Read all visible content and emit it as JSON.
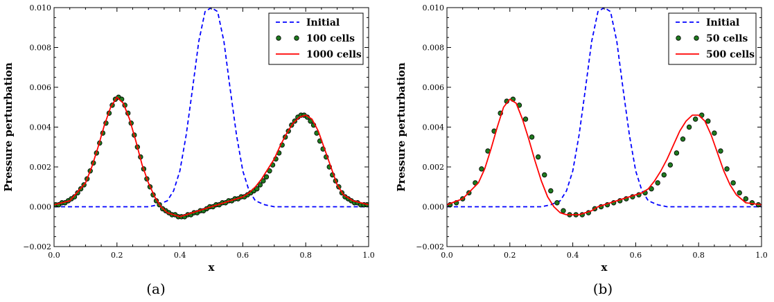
{
  "chart_data": [
    {
      "type": "line",
      "caption": "(a)",
      "xlabel": "x",
      "ylabel": "Pressure perturbation",
      "xlim": [
        0.0,
        1.0
      ],
      "ylim": [
        -0.002,
        0.01
      ],
      "xticks": [
        "0.0",
        "0.2",
        "0.4",
        "0.6",
        "0.8",
        "1.0"
      ],
      "yticks": [
        "−0.002",
        "0.000",
        "0.002",
        "0.004",
        "0.006",
        "0.008",
        "0.010"
      ],
      "legend_position": "top-right",
      "series": [
        {
          "name": "Initial",
          "style": "dashed",
          "color": "#0000ff",
          "x": [
            0.0,
            0.05,
            0.1,
            0.15,
            0.2,
            0.25,
            0.3,
            0.33,
            0.36,
            0.38,
            0.4,
            0.42,
            0.44,
            0.46,
            0.48,
            0.5,
            0.52,
            0.54,
            0.56,
            0.58,
            0.6,
            0.62,
            0.64,
            0.67,
            0.7,
            0.75,
            0.8,
            0.85,
            0.9,
            0.95,
            1.0
          ],
          "y": [
            0,
            0,
            0,
            0,
            0,
            0,
            0.0,
            0.0001,
            0.0003,
            0.0008,
            0.0018,
            0.0036,
            0.0059,
            0.0083,
            0.0098,
            0.01,
            0.0098,
            0.0083,
            0.0059,
            0.0036,
            0.0018,
            0.0008,
            0.0003,
            0.0001,
            0,
            0,
            0,
            0,
            0,
            0,
            0
          ]
        },
        {
          "name": "100 cells",
          "style": "markers",
          "color": "#1f7a1f",
          "edge": "#000000",
          "x": [
            0.005,
            0.015,
            0.025,
            0.035,
            0.045,
            0.055,
            0.065,
            0.075,
            0.085,
            0.095,
            0.105,
            0.115,
            0.125,
            0.135,
            0.145,
            0.155,
            0.165,
            0.175,
            0.185,
            0.195,
            0.205,
            0.215,
            0.225,
            0.235,
            0.245,
            0.255,
            0.265,
            0.275,
            0.285,
            0.295,
            0.305,
            0.315,
            0.325,
            0.335,
            0.345,
            0.355,
            0.365,
            0.375,
            0.385,
            0.395,
            0.405,
            0.415,
            0.425,
            0.435,
            0.445,
            0.455,
            0.465,
            0.475,
            0.485,
            0.495,
            0.505,
            0.515,
            0.525,
            0.535,
            0.545,
            0.555,
            0.565,
            0.575,
            0.585,
            0.595,
            0.605,
            0.615,
            0.625,
            0.635,
            0.645,
            0.655,
            0.665,
            0.675,
            0.685,
            0.695,
            0.705,
            0.715,
            0.725,
            0.735,
            0.745,
            0.755,
            0.765,
            0.775,
            0.785,
            0.795,
            0.805,
            0.815,
            0.825,
            0.835,
            0.845,
            0.855,
            0.865,
            0.875,
            0.885,
            0.895,
            0.905,
            0.915,
            0.925,
            0.935,
            0.945,
            0.955,
            0.965,
            0.975,
            0.985,
            0.995
          ],
          "y": [
            0.0001,
            0.0001,
            0.0002,
            0.0002,
            0.0003,
            0.0004,
            0.0005,
            0.0007,
            0.0009,
            0.0011,
            0.0014,
            0.0018,
            0.0022,
            0.0027,
            0.0032,
            0.0037,
            0.0042,
            0.0047,
            0.0051,
            0.0054,
            0.0055,
            0.0054,
            0.0051,
            0.0047,
            0.0042,
            0.0036,
            0.003,
            0.0025,
            0.0019,
            0.0014,
            0.001,
            0.0006,
            0.0003,
            0.0001,
            -0.0001,
            -0.0002,
            -0.0003,
            -0.0004,
            -0.0004,
            -0.0005,
            -0.0005,
            -0.0005,
            -0.0004,
            -0.0004,
            -0.0003,
            -0.0003,
            -0.0002,
            -0.0002,
            -0.0001,
            0.0,
            0.0,
            0.0001,
            0.0001,
            0.0002,
            0.0002,
            0.0003,
            0.0003,
            0.0004,
            0.0004,
            0.0005,
            0.0005,
            0.0006,
            0.0007,
            0.0008,
            0.0009,
            0.0011,
            0.0013,
            0.0015,
            0.0018,
            0.0021,
            0.0024,
            0.0027,
            0.0031,
            0.0035,
            0.0038,
            0.0041,
            0.0043,
            0.0045,
            0.0046,
            0.0046,
            0.0045,
            0.0043,
            0.0041,
            0.0037,
            0.0033,
            0.0029,
            0.0025,
            0.002,
            0.0016,
            0.0013,
            0.001,
            0.0007,
            0.0005,
            0.0004,
            0.0003,
            0.0002,
            0.0002,
            0.0001,
            0.0001,
            0.0001
          ]
        },
        {
          "name": "1000 cells",
          "style": "solid",
          "color": "#ff0000",
          "x": [
            0.0,
            0.05,
            0.1,
            0.12,
            0.14,
            0.16,
            0.18,
            0.2,
            0.22,
            0.24,
            0.26,
            0.28,
            0.3,
            0.32,
            0.34,
            0.36,
            0.38,
            0.4,
            0.42,
            0.44,
            0.46,
            0.48,
            0.5,
            0.52,
            0.54,
            0.56,
            0.58,
            0.6,
            0.62,
            0.64,
            0.66,
            0.68,
            0.7,
            0.72,
            0.74,
            0.76,
            0.78,
            0.8,
            0.82,
            0.84,
            0.86,
            0.88,
            0.9,
            0.92,
            0.95,
            1.0
          ],
          "y": [
            0.0001,
            0.0003,
            0.0012,
            0.002,
            0.003,
            0.0041,
            0.005,
            0.0055,
            0.0052,
            0.0044,
            0.0033,
            0.0021,
            0.0012,
            0.0005,
            0.0,
            -0.0003,
            -0.0004,
            -0.0005,
            -0.0004,
            -0.0003,
            -0.0002,
            -0.0001,
            0.0,
            0.0001,
            0.0002,
            0.0003,
            0.0004,
            0.0005,
            0.0007,
            0.001,
            0.0014,
            0.0019,
            0.0024,
            0.0031,
            0.0037,
            0.0042,
            0.0045,
            0.0046,
            0.0044,
            0.0038,
            0.0029,
            0.002,
            0.0011,
            0.0006,
            0.0003,
            0.0001
          ]
        }
      ]
    },
    {
      "type": "line",
      "caption": "(b)",
      "xlabel": "x",
      "ylabel": "Pressure perturbation",
      "xlim": [
        0.0,
        1.0
      ],
      "ylim": [
        -0.002,
        0.01
      ],
      "xticks": [
        "0.0",
        "0.2",
        "0.4",
        "0.6",
        "0.8",
        "1.0"
      ],
      "yticks": [
        "−0.002",
        "0.000",
        "0.002",
        "0.004",
        "0.006",
        "0.008",
        "0.010"
      ],
      "legend_position": "top-right",
      "series": [
        {
          "name": "Initial",
          "style": "dashed",
          "color": "#0000ff",
          "x": [
            0.0,
            0.05,
            0.1,
            0.15,
            0.2,
            0.25,
            0.3,
            0.33,
            0.36,
            0.38,
            0.4,
            0.42,
            0.44,
            0.46,
            0.48,
            0.5,
            0.52,
            0.54,
            0.56,
            0.58,
            0.6,
            0.62,
            0.64,
            0.67,
            0.7,
            0.75,
            0.8,
            0.85,
            0.9,
            0.95,
            1.0
          ],
          "y": [
            0,
            0,
            0,
            0,
            0,
            0,
            0.0,
            0.0001,
            0.0003,
            0.0008,
            0.0018,
            0.0036,
            0.0059,
            0.0083,
            0.0098,
            0.01,
            0.0098,
            0.0083,
            0.0059,
            0.0036,
            0.0018,
            0.0008,
            0.0003,
            0.0001,
            0,
            0,
            0,
            0,
            0,
            0,
            0
          ]
        },
        {
          "name": "50 cells",
          "style": "markers",
          "color": "#1f7a1f",
          "edge": "#000000",
          "x": [
            0.01,
            0.03,
            0.05,
            0.07,
            0.09,
            0.11,
            0.13,
            0.15,
            0.17,
            0.19,
            0.21,
            0.23,
            0.25,
            0.27,
            0.29,
            0.31,
            0.33,
            0.35,
            0.37,
            0.39,
            0.41,
            0.43,
            0.45,
            0.47,
            0.49,
            0.51,
            0.53,
            0.55,
            0.57,
            0.59,
            0.61,
            0.63,
            0.65,
            0.67,
            0.69,
            0.71,
            0.73,
            0.75,
            0.77,
            0.79,
            0.81,
            0.83,
            0.85,
            0.87,
            0.89,
            0.91,
            0.93,
            0.95,
            0.97,
            0.99
          ],
          "y": [
            0.0001,
            0.0002,
            0.0004,
            0.0007,
            0.0012,
            0.0019,
            0.0028,
            0.0038,
            0.0047,
            0.0053,
            0.0054,
            0.0051,
            0.0044,
            0.0035,
            0.0025,
            0.0016,
            0.0008,
            0.0002,
            -0.0002,
            -0.0004,
            -0.0004,
            -0.0004,
            -0.0003,
            -0.0001,
            0.0,
            0.0001,
            0.0002,
            0.0003,
            0.0004,
            0.0005,
            0.0006,
            0.0007,
            0.0009,
            0.0012,
            0.0016,
            0.0021,
            0.0027,
            0.0034,
            0.004,
            0.0044,
            0.0046,
            0.0043,
            0.0037,
            0.0028,
            0.0019,
            0.0012,
            0.0007,
            0.0004,
            0.0002,
            0.0001
          ]
        },
        {
          "name": "500 cells",
          "style": "solid",
          "color": "#ff0000",
          "x": [
            0.0,
            0.05,
            0.1,
            0.12,
            0.14,
            0.16,
            0.18,
            0.2,
            0.22,
            0.24,
            0.26,
            0.28,
            0.3,
            0.32,
            0.34,
            0.36,
            0.38,
            0.4,
            0.42,
            0.44,
            0.46,
            0.48,
            0.5,
            0.52,
            0.54,
            0.56,
            0.58,
            0.6,
            0.62,
            0.64,
            0.66,
            0.68,
            0.7,
            0.72,
            0.74,
            0.76,
            0.78,
            0.8,
            0.82,
            0.84,
            0.86,
            0.88,
            0.9,
            0.92,
            0.95,
            1.0
          ],
          "y": [
            0.0001,
            0.0004,
            0.0012,
            0.0019,
            0.0029,
            0.004,
            0.005,
            0.0054,
            0.0052,
            0.0044,
            0.0034,
            0.0023,
            0.0013,
            0.0005,
            0.0,
            -0.0003,
            -0.0004,
            -0.0004,
            -0.0004,
            -0.0003,
            -0.0002,
            0.0,
            0.0001,
            0.0002,
            0.0003,
            0.0004,
            0.0005,
            0.0006,
            0.0007,
            0.0009,
            0.0013,
            0.0018,
            0.0024,
            0.0031,
            0.0038,
            0.0043,
            0.0046,
            0.0046,
            0.0043,
            0.0036,
            0.0027,
            0.0018,
            0.0011,
            0.0006,
            0.0002,
            0.0001
          ]
        }
      ]
    }
  ]
}
